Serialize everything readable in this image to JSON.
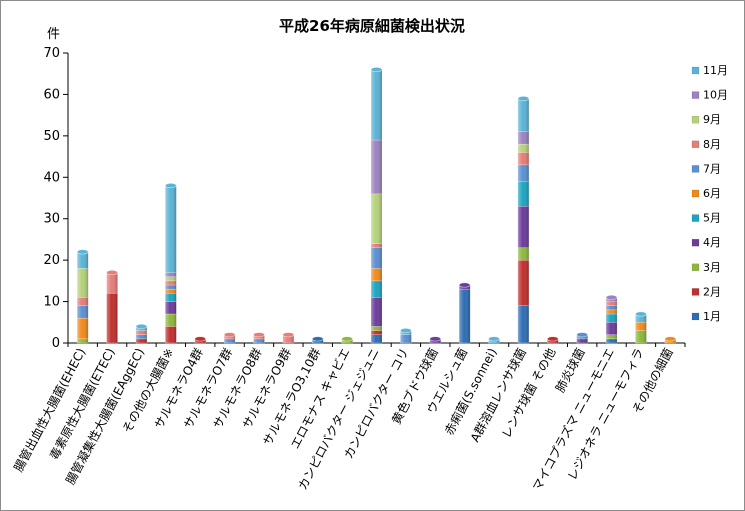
{
  "chart_data": {
    "type": "bar",
    "stacked": true,
    "title": "平成26年病原細菌検出状況",
    "ylabel": "件",
    "xlabel": "",
    "ylim": [
      0,
      70
    ],
    "yticks": [
      "0",
      "10",
      "20",
      "30",
      "40",
      "50",
      "60",
      "70"
    ],
    "grid": false,
    "legend_position": "right",
    "categories": [
      "腸管出血性大腸菌(EHEC)",
      "毒素原性大腸菌(ETEC)",
      "腸管凝集性大腸菌(EAggEC)",
      "その他の大腸菌※",
      "サルモネラO4群",
      "サルモネラO7群",
      "サルモネラO8群",
      "サルモネラO9群",
      "サルモネラO3,10群",
      "エロモナス キャビエ",
      "カンピロバクター ジェジュニ",
      "カンピロバクター コリ",
      "黄色ブドウ球菌",
      "ウエルシュ菌",
      "赤痢菌(S.sonnei)",
      "A群溶血レンサ球菌",
      "レンサ球菌 その他",
      "肺炎球菌",
      "マイコプラズマ ニューモニエ",
      "レジオネラ ニューモフィラ",
      "その他の細菌"
    ],
    "series": [
      {
        "name": "1月",
        "color": "#2e6db4",
        "values": [
          0,
          0,
          0,
          0,
          0,
          0,
          0,
          0,
          1,
          0,
          2,
          0,
          0,
          13,
          0,
          9,
          0,
          0,
          1,
          0,
          0
        ]
      },
      {
        "name": "2月",
        "color": "#c0302e",
        "values": [
          0,
          12,
          1,
          4,
          1,
          0,
          0,
          0,
          0,
          0,
          1,
          0,
          0,
          0,
          0,
          11,
          1,
          0,
          0,
          0,
          0
        ]
      },
      {
        "name": "3月",
        "color": "#8db83c",
        "values": [
          1,
          0,
          0,
          3,
          0,
          0,
          0,
          0,
          0,
          1,
          1,
          0,
          0,
          0,
          0,
          3,
          0,
          0,
          1,
          3,
          0
        ]
      },
      {
        "name": "4月",
        "color": "#6b3c9a",
        "values": [
          0,
          0,
          0,
          3,
          0,
          0,
          0,
          0,
          0,
          0,
          7,
          0,
          1,
          1,
          0,
          10,
          0,
          1,
          3,
          0,
          0
        ]
      },
      {
        "name": "5月",
        "color": "#1ca5c0",
        "values": [
          0,
          0,
          0,
          2,
          0,
          0,
          0,
          0,
          0,
          0,
          4,
          0,
          0,
          0,
          0,
          6,
          0,
          0,
          2,
          0,
          0
        ]
      },
      {
        "name": "6月",
        "color": "#f08a1c",
        "values": [
          5,
          0,
          0,
          1,
          0,
          0,
          0,
          0,
          0,
          0,
          3,
          0,
          0,
          0,
          0,
          0,
          0,
          0,
          1,
          2,
          1
        ]
      },
      {
        "name": "7月",
        "color": "#5a8fd0",
        "values": [
          3,
          0,
          1,
          1,
          0,
          1,
          1,
          0,
          0,
          0,
          5,
          2,
          0,
          0,
          0,
          4,
          0,
          1,
          1,
          0,
          0
        ]
      },
      {
        "name": "8月",
        "color": "#e57d78",
        "values": [
          2,
          5,
          1,
          1,
          0,
          1,
          1,
          2,
          0,
          0,
          1,
          0,
          0,
          0,
          0,
          3,
          0,
          0,
          1,
          0,
          0
        ]
      },
      {
        "name": "9月",
        "color": "#b5d17a",
        "values": [
          7,
          0,
          0,
          1,
          0,
          0,
          0,
          0,
          0,
          0,
          12,
          0,
          0,
          0,
          0,
          2,
          0,
          0,
          0,
          0,
          0
        ]
      },
      {
        "name": "10月",
        "color": "#9b83c0",
        "values": [
          0,
          0,
          0,
          1,
          0,
          0,
          0,
          0,
          0,
          0,
          13,
          0,
          0,
          0,
          0,
          3,
          0,
          0,
          1,
          0,
          0
        ]
      },
      {
        "name": "11月",
        "color": "#5bb3d6",
        "values": [
          4,
          0,
          1,
          21,
          0,
          0,
          0,
          0,
          0,
          0,
          17,
          1,
          0,
          0,
          1,
          8,
          0,
          0,
          0,
          2,
          0
        ]
      }
    ]
  }
}
